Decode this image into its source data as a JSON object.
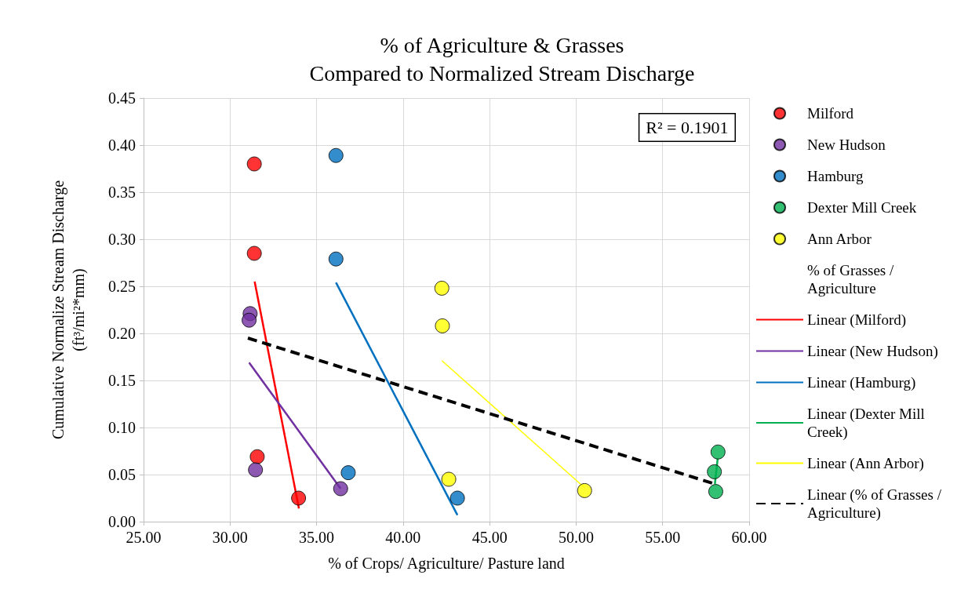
{
  "chart_data": {
    "type": "scatter",
    "title": "% of Agriculture & Grasses\nCompared to Normalized Stream Discharge",
    "xlabel": "% of Crops/ Agriculture/ Pasture land",
    "ylabel": "Cumulative Normalize Stream Discharge\n(ft³/mi²*mm)",
    "xlim": [
      25,
      60
    ],
    "xticks": [
      {
        "value": 25,
        "label": "25.00"
      },
      {
        "value": 30,
        "label": "30.00"
      },
      {
        "value": 35,
        "label": "35.00"
      },
      {
        "value": 40,
        "label": "40.00"
      },
      {
        "value": 45,
        "label": "45.00"
      },
      {
        "value": 50,
        "label": "50.00"
      },
      {
        "value": 55,
        "label": "55.00"
      },
      {
        "value": 60,
        "label": "60.00"
      }
    ],
    "ylim": [
      0,
      0.45
    ],
    "yticks": [
      {
        "value": 0,
        "label": "0.00"
      },
      {
        "value": 0.05,
        "label": "0.05"
      },
      {
        "value": 0.1,
        "label": "0.10"
      },
      {
        "value": 0.15,
        "label": "0.15"
      },
      {
        "value": 0.2,
        "label": "0.20"
      },
      {
        "value": 0.25,
        "label": "0.25"
      },
      {
        "value": 0.3,
        "label": "0.30"
      },
      {
        "value": 0.35,
        "label": "0.35"
      },
      {
        "value": 0.4,
        "label": "0.40"
      },
      {
        "value": 0.45,
        "label": "0.45"
      }
    ],
    "grid": true,
    "legend": "right",
    "marker": "circle",
    "annotations": [
      "R² = 0.1901"
    ],
    "series": [
      {
        "name": "Milford",
        "color": "#ff0000",
        "x": [
          31.4,
          31.4,
          31.57,
          33.96
        ],
        "values": [
          0.38,
          0.285,
          0.069,
          0.025
        ]
      },
      {
        "name": "New Hudson",
        "color": "#7030a0",
        "x": [
          31.16,
          31.1,
          31.47,
          36.39
        ],
        "values": [
          0.221,
          0.214,
          0.055,
          0.035
        ]
      },
      {
        "name": "Hamburg",
        "color": "#0070c0",
        "x": [
          36.12,
          36.12,
          36.83,
          43.14
        ],
        "values": [
          0.389,
          0.279,
          0.052,
          0.025
        ]
      },
      {
        "name": "Dexter Mill Creek",
        "color": "#00b050",
        "x": [
          58.2,
          57.99,
          58.07
        ],
        "values": [
          0.074,
          0.053,
          0.032
        ]
      },
      {
        "name": "Ann Arbor",
        "color": "#ffff00",
        "x": [
          42.24,
          42.27,
          42.64,
          50.49
        ],
        "values": [
          0.248,
          0.208,
          0.045,
          0.033
        ]
      },
      {
        "name": "% of Grasses / Agriculture",
        "marker": "none"
      },
      {
        "name": "Linear (Milford)",
        "type": "line",
        "marker": "none",
        "line_style": "solid",
        "color": "#ff0000",
        "x": [
          31.42,
          33.98
        ],
        "values": [
          0.255,
          0.014
        ]
      },
      {
        "name": "Linear (New Hudson)",
        "type": "line",
        "marker": "none",
        "line_style": "solid",
        "color": "#7030a0",
        "x": [
          31.1,
          36.39
        ],
        "values": [
          0.169,
          0.035
        ]
      },
      {
        "name": "Linear (Hamburg)",
        "type": "line",
        "marker": "none",
        "line_style": "solid",
        "color": "#0070c0",
        "x": [
          36.12,
          43.14
        ],
        "values": [
          0.254,
          0.007
        ]
      },
      {
        "name": "Linear (Dexter Mill Creek)",
        "type": "line",
        "marker": "none",
        "line_style": "solid",
        "color": "#00b050",
        "x": [
          58.18,
          58.02
        ],
        "values": [
          0.067,
          0.04
        ]
      },
      {
        "name": "Linear (Ann Arbor)",
        "type": "line",
        "marker": "none",
        "line_style": "solid",
        "color": "#ffff00",
        "x": [
          42.24,
          50.49
        ],
        "values": [
          0.171,
          0.036
        ]
      },
      {
        "name": "Linear (% of Grasses / Agriculture)",
        "type": "line",
        "marker": "none",
        "line_style": "dashed",
        "color": "#000000",
        "x": [
          31.03,
          58.02
        ],
        "values": [
          0.195,
          0.04
        ]
      }
    ]
  }
}
